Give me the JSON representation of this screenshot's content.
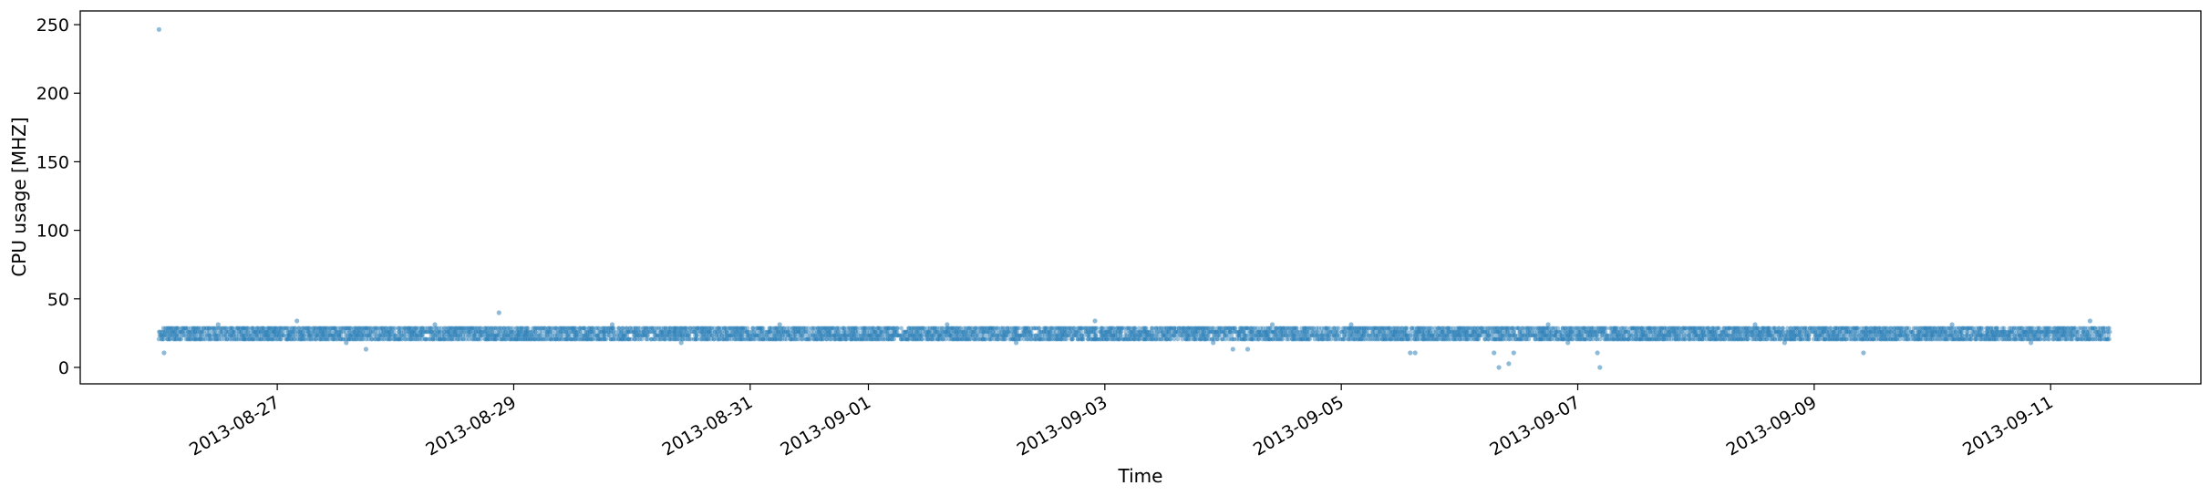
{
  "chart_data": {
    "type": "scatter",
    "title": "",
    "xlabel": "Time",
    "ylabel": "CPU usage [MHZ]",
    "x_type": "date",
    "xlim": [
      "2013-08-25T08:00",
      "2013-09-12T06:30"
    ],
    "ylim": [
      -12,
      260
    ],
    "xticks": [
      "2013-08-27",
      "2013-08-29",
      "2013-08-31",
      "2013-09-01",
      "2013-09-03",
      "2013-09-05",
      "2013-09-07",
      "2013-09-09",
      "2013-09-11"
    ],
    "yticks": [
      0,
      50,
      100,
      150,
      200,
      250
    ],
    "grid": false,
    "legend": "none",
    "color": "#1f77b4",
    "x_range": [
      "2013-08-26T00:00",
      "2013-09-11T12:00"
    ],
    "levels_mhz": [
      20.6,
      23.3,
      25.9,
      28.6
    ],
    "points": [
      {
        "x": "2013-08-26T00:00",
        "y": 246.5
      },
      {
        "x": "2013-08-26T01:00",
        "y": 10.6
      },
      {
        "x": "2013-08-27T18:00",
        "y": 13.3
      },
      {
        "x": "2013-08-28T21:00",
        "y": 39.9
      },
      {
        "x": "2013-09-04T02:00",
        "y": 13.3
      },
      {
        "x": "2013-09-04T05:00",
        "y": 13.3
      },
      {
        "x": "2013-09-05T14:00",
        "y": 10.6
      },
      {
        "x": "2013-09-05T15:00",
        "y": 10.6
      },
      {
        "x": "2013-09-06T07:00",
        "y": 10.6
      },
      {
        "x": "2013-09-06T08:00",
        "y": 0.0
      },
      {
        "x": "2013-09-06T10:00",
        "y": 2.7
      },
      {
        "x": "2013-09-06T11:00",
        "y": 10.6
      },
      {
        "x": "2013-09-07T04:00",
        "y": 10.6
      },
      {
        "x": "2013-09-07T04:30",
        "y": 0.0
      },
      {
        "x": "2013-09-09T10:00",
        "y": 10.6
      },
      {
        "x": "2013-08-26T12:00",
        "y": 31.2
      },
      {
        "x": "2013-08-27T04:00",
        "y": 33.9
      },
      {
        "x": "2013-08-28T08:00",
        "y": 31.2
      },
      {
        "x": "2013-08-29T20:00",
        "y": 31.2
      },
      {
        "x": "2013-08-31T06:00",
        "y": 31.2
      },
      {
        "x": "2013-09-01T16:00",
        "y": 31.2
      },
      {
        "x": "2013-09-02T22:00",
        "y": 33.9
      },
      {
        "x": "2013-09-04T10:00",
        "y": 31.2
      },
      {
        "x": "2013-09-05T02:00",
        "y": 31.2
      },
      {
        "x": "2013-09-06T18:00",
        "y": 31.2
      },
      {
        "x": "2013-09-08T12:00",
        "y": 31.2
      },
      {
        "x": "2013-09-10T04:00",
        "y": 31.2
      },
      {
        "x": "2013-09-11T08:00",
        "y": 33.9
      },
      {
        "x": "2013-08-27T14:00",
        "y": 18.0
      },
      {
        "x": "2013-08-30T10:00",
        "y": 18.0
      },
      {
        "x": "2013-09-02T06:00",
        "y": 18.0
      },
      {
        "x": "2013-09-03T22:00",
        "y": 18.0
      },
      {
        "x": "2013-09-06T22:00",
        "y": 18.0
      },
      {
        "x": "2013-09-08T18:00",
        "y": 18.0
      },
      {
        "x": "2013-09-10T20:00",
        "y": 18.0
      }
    ]
  }
}
